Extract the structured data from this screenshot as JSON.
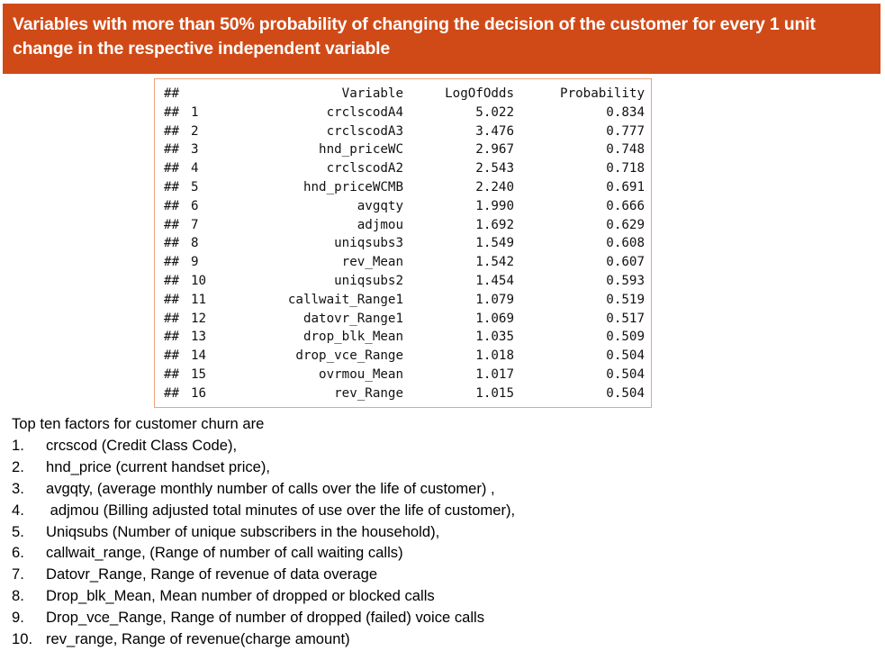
{
  "banner": {
    "line1": "Variables with more than 50% probability of changing the decision of the customer for every  1 unit",
    "line2": "change in the respective independent variable"
  },
  "console": {
    "prefix": "##",
    "headers": {
      "variable": "Variable",
      "logodds": "LogOfOdds",
      "probability": "Probability"
    },
    "rows": [
      {
        "index": "1",
        "variable": "crclscodA4",
        "logodds": "5.022",
        "probability": "0.834"
      },
      {
        "index": "2",
        "variable": "crclscodA3",
        "logodds": "3.476",
        "probability": "0.777"
      },
      {
        "index": "3",
        "variable": "hnd_priceWC",
        "logodds": "2.967",
        "probability": "0.748"
      },
      {
        "index": "4",
        "variable": "crclscodA2",
        "logodds": "2.543",
        "probability": "0.718"
      },
      {
        "index": "5",
        "variable": "hnd_priceWCMB",
        "logodds": "2.240",
        "probability": "0.691"
      },
      {
        "index": "6",
        "variable": "avgqty",
        "logodds": "1.990",
        "probability": "0.666"
      },
      {
        "index": "7",
        "variable": "adjmou",
        "logodds": "1.692",
        "probability": "0.629"
      },
      {
        "index": "8",
        "variable": "uniqsubs3",
        "logodds": "1.549",
        "probability": "0.608"
      },
      {
        "index": "9",
        "variable": "rev_Mean",
        "logodds": "1.542",
        "probability": "0.607"
      },
      {
        "index": "10",
        "variable": "uniqsubs2",
        "logodds": "1.454",
        "probability": "0.593"
      },
      {
        "index": "11",
        "variable": "callwait_Range1",
        "logodds": "1.079",
        "probability": "0.519"
      },
      {
        "index": "12",
        "variable": "datovr_Range1",
        "logodds": "1.069",
        "probability": "0.517"
      },
      {
        "index": "13",
        "variable": "drop_blk_Mean",
        "logodds": "1.035",
        "probability": "0.509"
      },
      {
        "index": "14",
        "variable": "drop_vce_Range",
        "logodds": "1.018",
        "probability": "0.504"
      },
      {
        "index": "15",
        "variable": "ovrmou_Mean",
        "logodds": "1.017",
        "probability": "0.504"
      },
      {
        "index": "16",
        "variable": "rev_Range",
        "logodds": "1.015",
        "probability": "0.504"
      }
    ]
  },
  "notes": {
    "title": "Top ten factors  for customer churn are",
    "items": [
      {
        "num": "1.",
        "text": "crcscod (Credit Class Code),"
      },
      {
        "num": "2.",
        "text": "hnd_price (current handset price),"
      },
      {
        "num": "3.",
        "text": "avgqty, (average monthly number of calls over the life of customer) ,"
      },
      {
        "num": "4.",
        "text": " adjmou (Billing adjusted total minutes of use over the life of customer),"
      },
      {
        "num": "5.",
        "text": "Uniqsubs (Number of unique subscribers in the household),"
      },
      {
        "num": "6.",
        "text": "callwait_range, (Range of number of call waiting calls)"
      },
      {
        "num": "7.",
        "text": "Datovr_Range, Range of revenue of data overage"
      },
      {
        "num": "8.",
        "text": "Drop_blk_Mean, Mean number of dropped or blocked calls"
      },
      {
        "num": "9.",
        "text": "Drop_vce_Range, Range of number of dropped (failed) voice calls"
      },
      {
        "num": "10.",
        "text": "rev_range, Range of revenue(charge amount)"
      }
    ]
  },
  "colors": {
    "banner_bg": "#d04a17",
    "banner_text": "#ffffff",
    "console_border": "#f0a27a"
  }
}
